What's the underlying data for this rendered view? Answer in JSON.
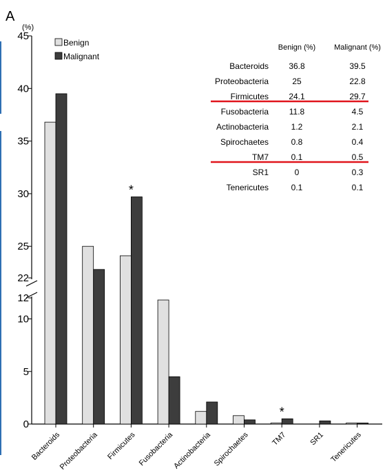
{
  "panel_label": "A",
  "y_unit": "(%)",
  "legend": [
    {
      "label": "Benign",
      "color": "#e0e0e0"
    },
    {
      "label": "Malignant",
      "color": "#3d3d3d"
    }
  ],
  "chart_data": {
    "type": "bar",
    "title": "",
    "xlabel": "",
    "ylabel": "(%)",
    "categories": [
      "Bacteroids",
      "Proteobacteria",
      "Firmicutes",
      "Fusobacteria",
      "Actinobacteria",
      "Spirochaetes",
      "TM7",
      "SR1",
      "Tenericutes"
    ],
    "series": [
      {
        "name": "Benign",
        "values": [
          36.8,
          25,
          24.1,
          11.8,
          1.2,
          0.8,
          0.1,
          0,
          0.1
        ]
      },
      {
        "name": "Malignant",
        "values": [
          39.5,
          22.8,
          29.7,
          4.5,
          2.1,
          0.4,
          0.5,
          0.3,
          0.1
        ]
      }
    ],
    "axis_break": {
      "lower_max": 12,
      "upper_min": 22
    },
    "y_ticks": [
      "0",
      "5",
      "10",
      "12",
      "22",
      "25",
      "30",
      "35",
      "40",
      "45"
    ],
    "ylim": [
      0,
      45
    ],
    "significance_markers": [
      {
        "category": "Firmicutes",
        "symbol": "*"
      },
      {
        "category": "TM7",
        "symbol": "*"
      }
    ],
    "legend_position": "top-left",
    "grid": false
  },
  "table": {
    "headers": [
      "",
      "Benign (%)",
      "Malignant (%)"
    ],
    "rows": [
      [
        "Bacteroids",
        "36.8",
        "39.5"
      ],
      [
        "Proteobacteria",
        "25",
        "22.8"
      ],
      [
        "Firmicutes",
        "24.1",
        "29.7"
      ],
      [
        "Fusobacteria",
        "11.8",
        "4.5"
      ],
      [
        "Actinobacteria",
        "1.2",
        "2.1"
      ],
      [
        "Spirochaetes",
        "0.8",
        "0.4"
      ],
      [
        "TM7",
        "0.1",
        "0.5"
      ],
      [
        "SR1",
        "0",
        "0.3"
      ],
      [
        "Tenericutes",
        "0.1",
        "0.1"
      ]
    ],
    "highlight_color": "#e0141b"
  }
}
